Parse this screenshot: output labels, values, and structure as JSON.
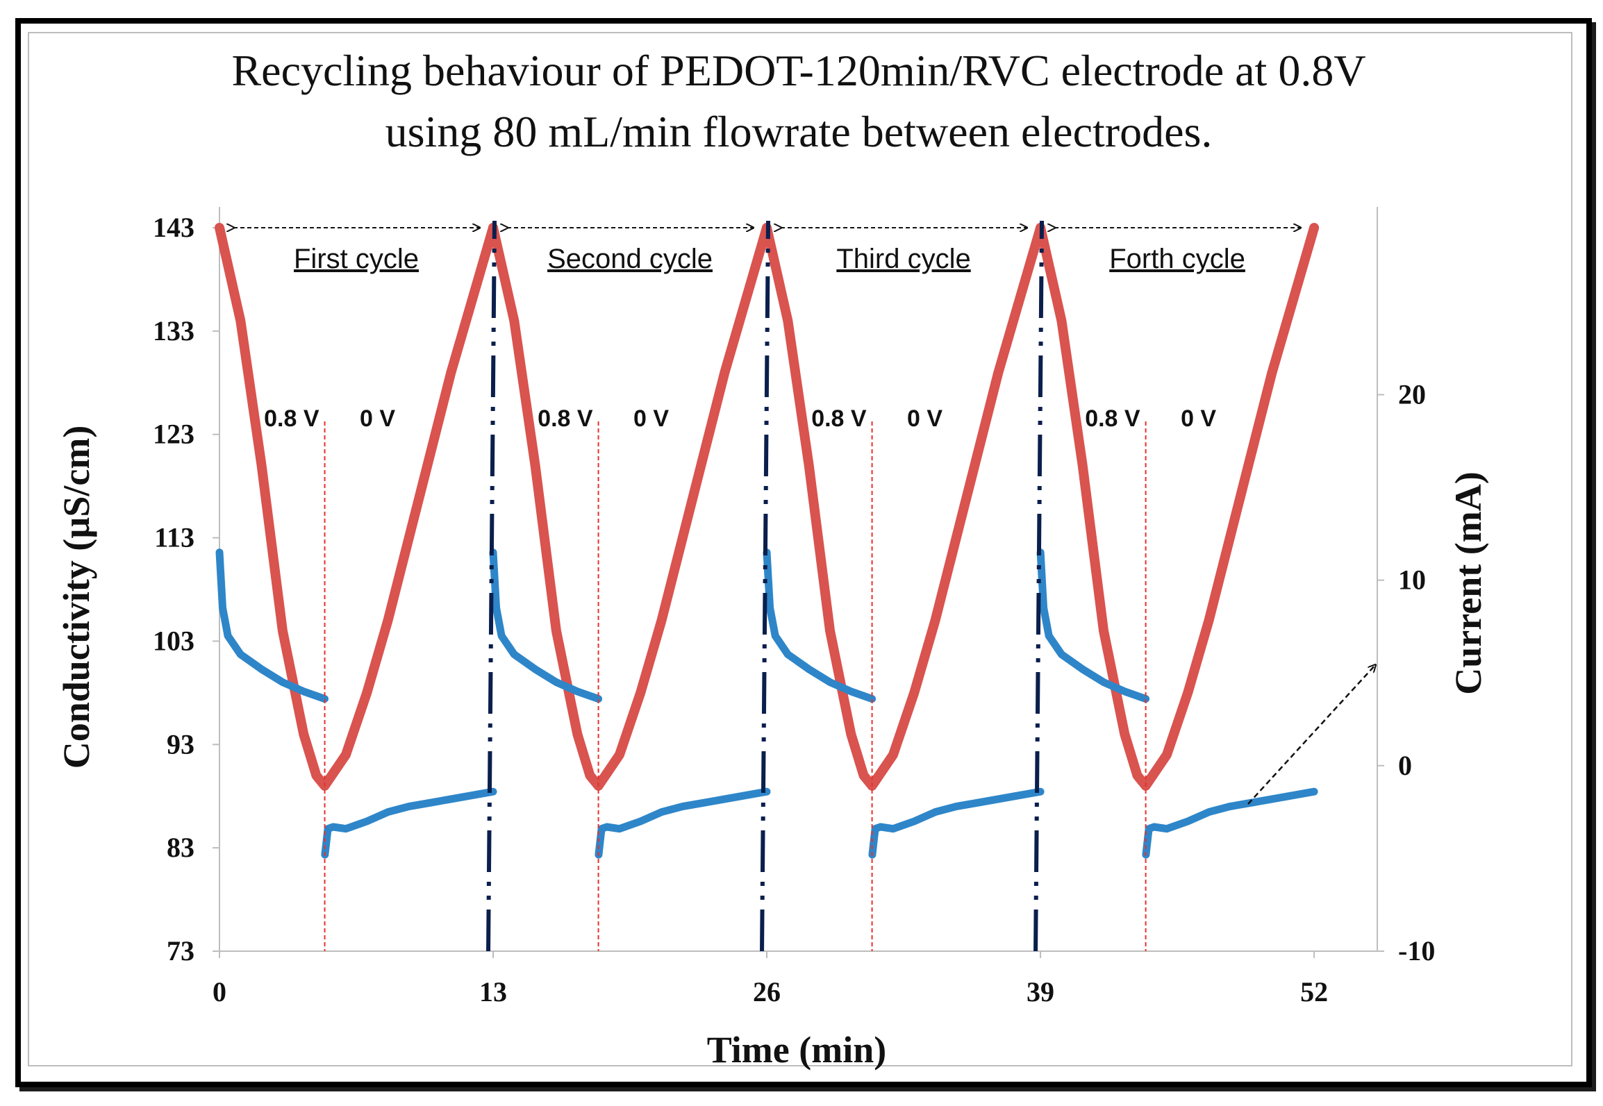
{
  "chart_data": {
    "type": "line",
    "title": [
      "Recycling behaviour of PEDOT-120min/RVC electrode at 0.8V",
      "using 80 mL/min flowrate between electrodes."
    ],
    "xlabel": "Time (min)",
    "ylabel": "Conductivity (µS/cm)",
    "y2label": "Current (mA)",
    "xlim": [
      0,
      55
    ],
    "ylim": [
      73,
      143
    ],
    "y2lim": [
      -10,
      29
    ],
    "x_ticks": [
      0,
      13,
      26,
      39,
      52
    ],
    "y_ticks": [
      73,
      83,
      93,
      103,
      113,
      123,
      133,
      143
    ],
    "y2_ticks": [
      -10,
      0,
      10,
      20
    ],
    "cycle_labels": [
      {
        "label": "First cycle",
        "from": 0,
        "to": 13
      },
      {
        "label": "Second cycle",
        "from": 13,
        "to": 26
      },
      {
        "label": "Third cycle",
        "from": 26,
        "to": 39
      },
      {
        "label": "Forth cycle",
        "from": 39,
        "to": 52
      }
    ],
    "voltage_switch_times": [
      5,
      18,
      31,
      44
    ],
    "cycle_boundaries": [
      13,
      26,
      39
    ],
    "voltage_labels": [
      "0.8 V",
      "0 V"
    ],
    "series": [
      {
        "name": "Conductivity",
        "axis": "left",
        "color": "#d9534f",
        "cycle_period": 13,
        "cycle_points": [
          [
            0,
            143
          ],
          [
            1,
            134
          ],
          [
            2,
            120
          ],
          [
            3,
            104
          ],
          [
            4,
            94
          ],
          [
            4.6,
            90
          ],
          [
            5,
            89
          ],
          [
            6,
            92
          ],
          [
            7,
            98
          ],
          [
            8,
            105
          ],
          [
            9,
            113
          ],
          [
            10,
            121
          ],
          [
            11,
            129
          ],
          [
            12,
            136
          ],
          [
            13,
            143
          ]
        ],
        "cycle_count": 4
      },
      {
        "name": "Current",
        "axis": "right",
        "color": "#2e86c9",
        "cycle_period": 13,
        "cycle_points": [
          [
            0,
            11.5
          ],
          [
            0.15,
            8.5
          ],
          [
            0.4,
            7.0
          ],
          [
            1,
            6.0
          ],
          [
            2,
            5.2
          ],
          [
            3,
            4.5
          ],
          [
            4,
            4.0
          ],
          [
            5,
            3.6
          ],
          [
            5.01,
            -4.8
          ],
          [
            5.15,
            -3.4
          ],
          [
            5.4,
            -3.3
          ],
          [
            6,
            -3.4
          ],
          [
            7,
            -3.0
          ],
          [
            8,
            -2.5
          ],
          [
            9,
            -2.2
          ],
          [
            10,
            -2.0
          ],
          [
            11,
            -1.8
          ],
          [
            12,
            -1.6
          ],
          [
            13,
            -1.4
          ]
        ],
        "cycle_count": 4
      }
    ]
  },
  "annotations": {
    "arrow_label": ""
  },
  "colors": {
    "conductivity": "#d9534f",
    "current": "#2e86c9",
    "switch_line": "#e8312b",
    "boundary_line": "#0b1f4d"
  }
}
